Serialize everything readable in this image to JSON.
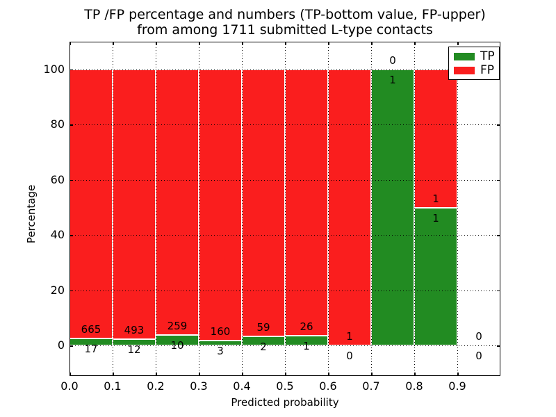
{
  "chart_data": {
    "type": "bar",
    "stacked": true,
    "title_line1": "TP /FP percentage and numbers (TP-bottom value, FP-upper)",
    "title_line2": "from among 1711 submitted L-type contacts",
    "xlabel": "Predicted probability",
    "ylabel": "Percentage",
    "xlim": [
      0.0,
      1.0
    ],
    "ylim": [
      -11,
      110
    ],
    "x_tick_values": [
      0.0,
      0.1,
      0.2,
      0.3,
      0.4,
      0.5,
      0.6,
      0.7,
      0.8,
      0.9
    ],
    "x_tick_labels": [
      "0.0",
      "0.1",
      "0.2",
      "0.3",
      "0.4",
      "0.5",
      "0.6",
      "0.7",
      "0.8",
      "0.9"
    ],
    "y_tick_values": [
      0,
      20,
      40,
      60,
      80,
      100
    ],
    "y_tick_labels": [
      "0",
      "20",
      "40",
      "60",
      "80",
      "100"
    ],
    "grid": "dotted",
    "legend": {
      "position": "upper right",
      "entries": [
        {
          "label": "TP",
          "color": "#228b22"
        },
        {
          "label": "FP",
          "color": "#fa1e1e"
        }
      ]
    },
    "categories": [
      "0.0-0.1",
      "0.1-0.2",
      "0.2-0.3",
      "0.3-0.4",
      "0.4-0.5",
      "0.5-0.6",
      "0.6-0.7",
      "0.7-0.8",
      "0.8-0.9",
      "0.9-1.0"
    ],
    "series": [
      {
        "name": "TP",
        "counts": [
          17,
          12,
          10,
          3,
          2,
          1,
          0,
          1,
          1,
          0
        ]
      },
      {
        "name": "FP",
        "counts": [
          665,
          493,
          259,
          160,
          59,
          26,
          1,
          0,
          1,
          0
        ]
      }
    ],
    "bins": [
      {
        "x_start": 0.0,
        "x_end": 0.1,
        "tp": 17,
        "fp": 665
      },
      {
        "x_start": 0.1,
        "x_end": 0.2,
        "tp": 12,
        "fp": 493
      },
      {
        "x_start": 0.2,
        "x_end": 0.3,
        "tp": 10,
        "fp": 259
      },
      {
        "x_start": 0.3,
        "x_end": 0.4,
        "tp": 3,
        "fp": 160
      },
      {
        "x_start": 0.4,
        "x_end": 0.5,
        "tp": 2,
        "fp": 59
      },
      {
        "x_start": 0.5,
        "x_end": 0.6,
        "tp": 1,
        "fp": 26
      },
      {
        "x_start": 0.6,
        "x_end": 0.7,
        "tp": 0,
        "fp": 1
      },
      {
        "x_start": 0.7,
        "x_end": 0.8,
        "tp": 1,
        "fp": 0
      },
      {
        "x_start": 0.8,
        "x_end": 0.9,
        "tp": 1,
        "fp": 1
      },
      {
        "x_start": 0.9,
        "x_end": 1.0,
        "tp": 0,
        "fp": 0
      }
    ],
    "colors": {
      "tp": "#228b22",
      "fp": "#fa1e1e",
      "grid": "#000000",
      "bar_edge": "#ffffff",
      "background": "#ffffff",
      "text": "#000000"
    }
  }
}
